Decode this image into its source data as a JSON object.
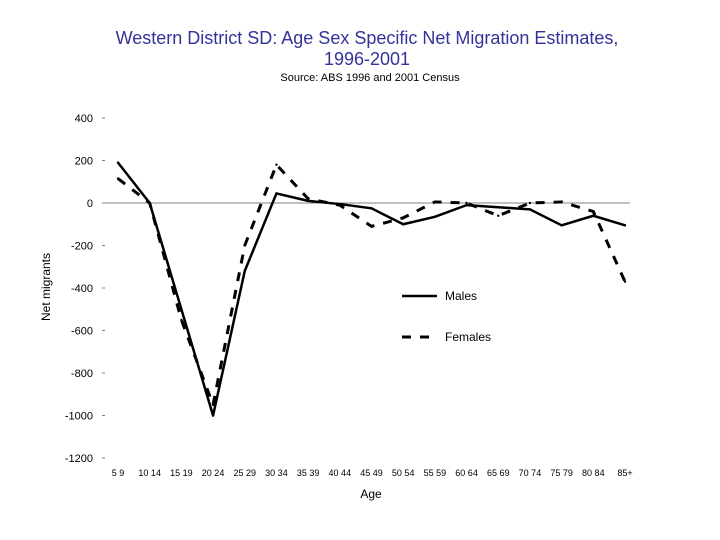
{
  "chart_data": {
    "type": "line",
    "title_line1": "Western District SD: Age Sex Specific Net Migration Estimates,",
    "title_line2": "1996-2001",
    "subtitle": "Source: ABS 1996 and 2001 Census",
    "xlabel": "Age",
    "ylabel": "Net migrants",
    "ylim": [
      -1200,
      400
    ],
    "yticks": [
      400,
      200,
      0,
      -200,
      -400,
      -600,
      -800,
      -1000,
      -1200
    ],
    "ytick_labels": [
      "400",
      "200",
      "0",
      "-200",
      "-400",
      "-600",
      "-800",
      "-1000",
      "-1200"
    ],
    "categories": [
      "5 9",
      "10 14",
      "15 19",
      "20 24",
      "25 29",
      "30 34",
      "35 39",
      "40 44",
      "45 49",
      "50 54",
      "55 59",
      "60 64",
      "65 69",
      "70 74",
      "75 79",
      "80 84",
      "85+"
    ],
    "series": [
      {
        "name": "Males",
        "style": "solid",
        "color": "#000000",
        "values": [
          190,
          0,
          -500,
          -1000,
          -320,
          45,
          10,
          -5,
          -25,
          -100,
          -65,
          -10,
          -20,
          -30,
          -105,
          -60,
          -105
        ]
      },
      {
        "name": "Females",
        "style": "dashed",
        "color": "#000000",
        "values": [
          115,
          0,
          -550,
          -950,
          -200,
          180,
          20,
          -10,
          -110,
          -70,
          5,
          0,
          -60,
          0,
          5,
          -40,
          -370
        ]
      }
    ],
    "legend": {
      "position": "center-right"
    }
  }
}
